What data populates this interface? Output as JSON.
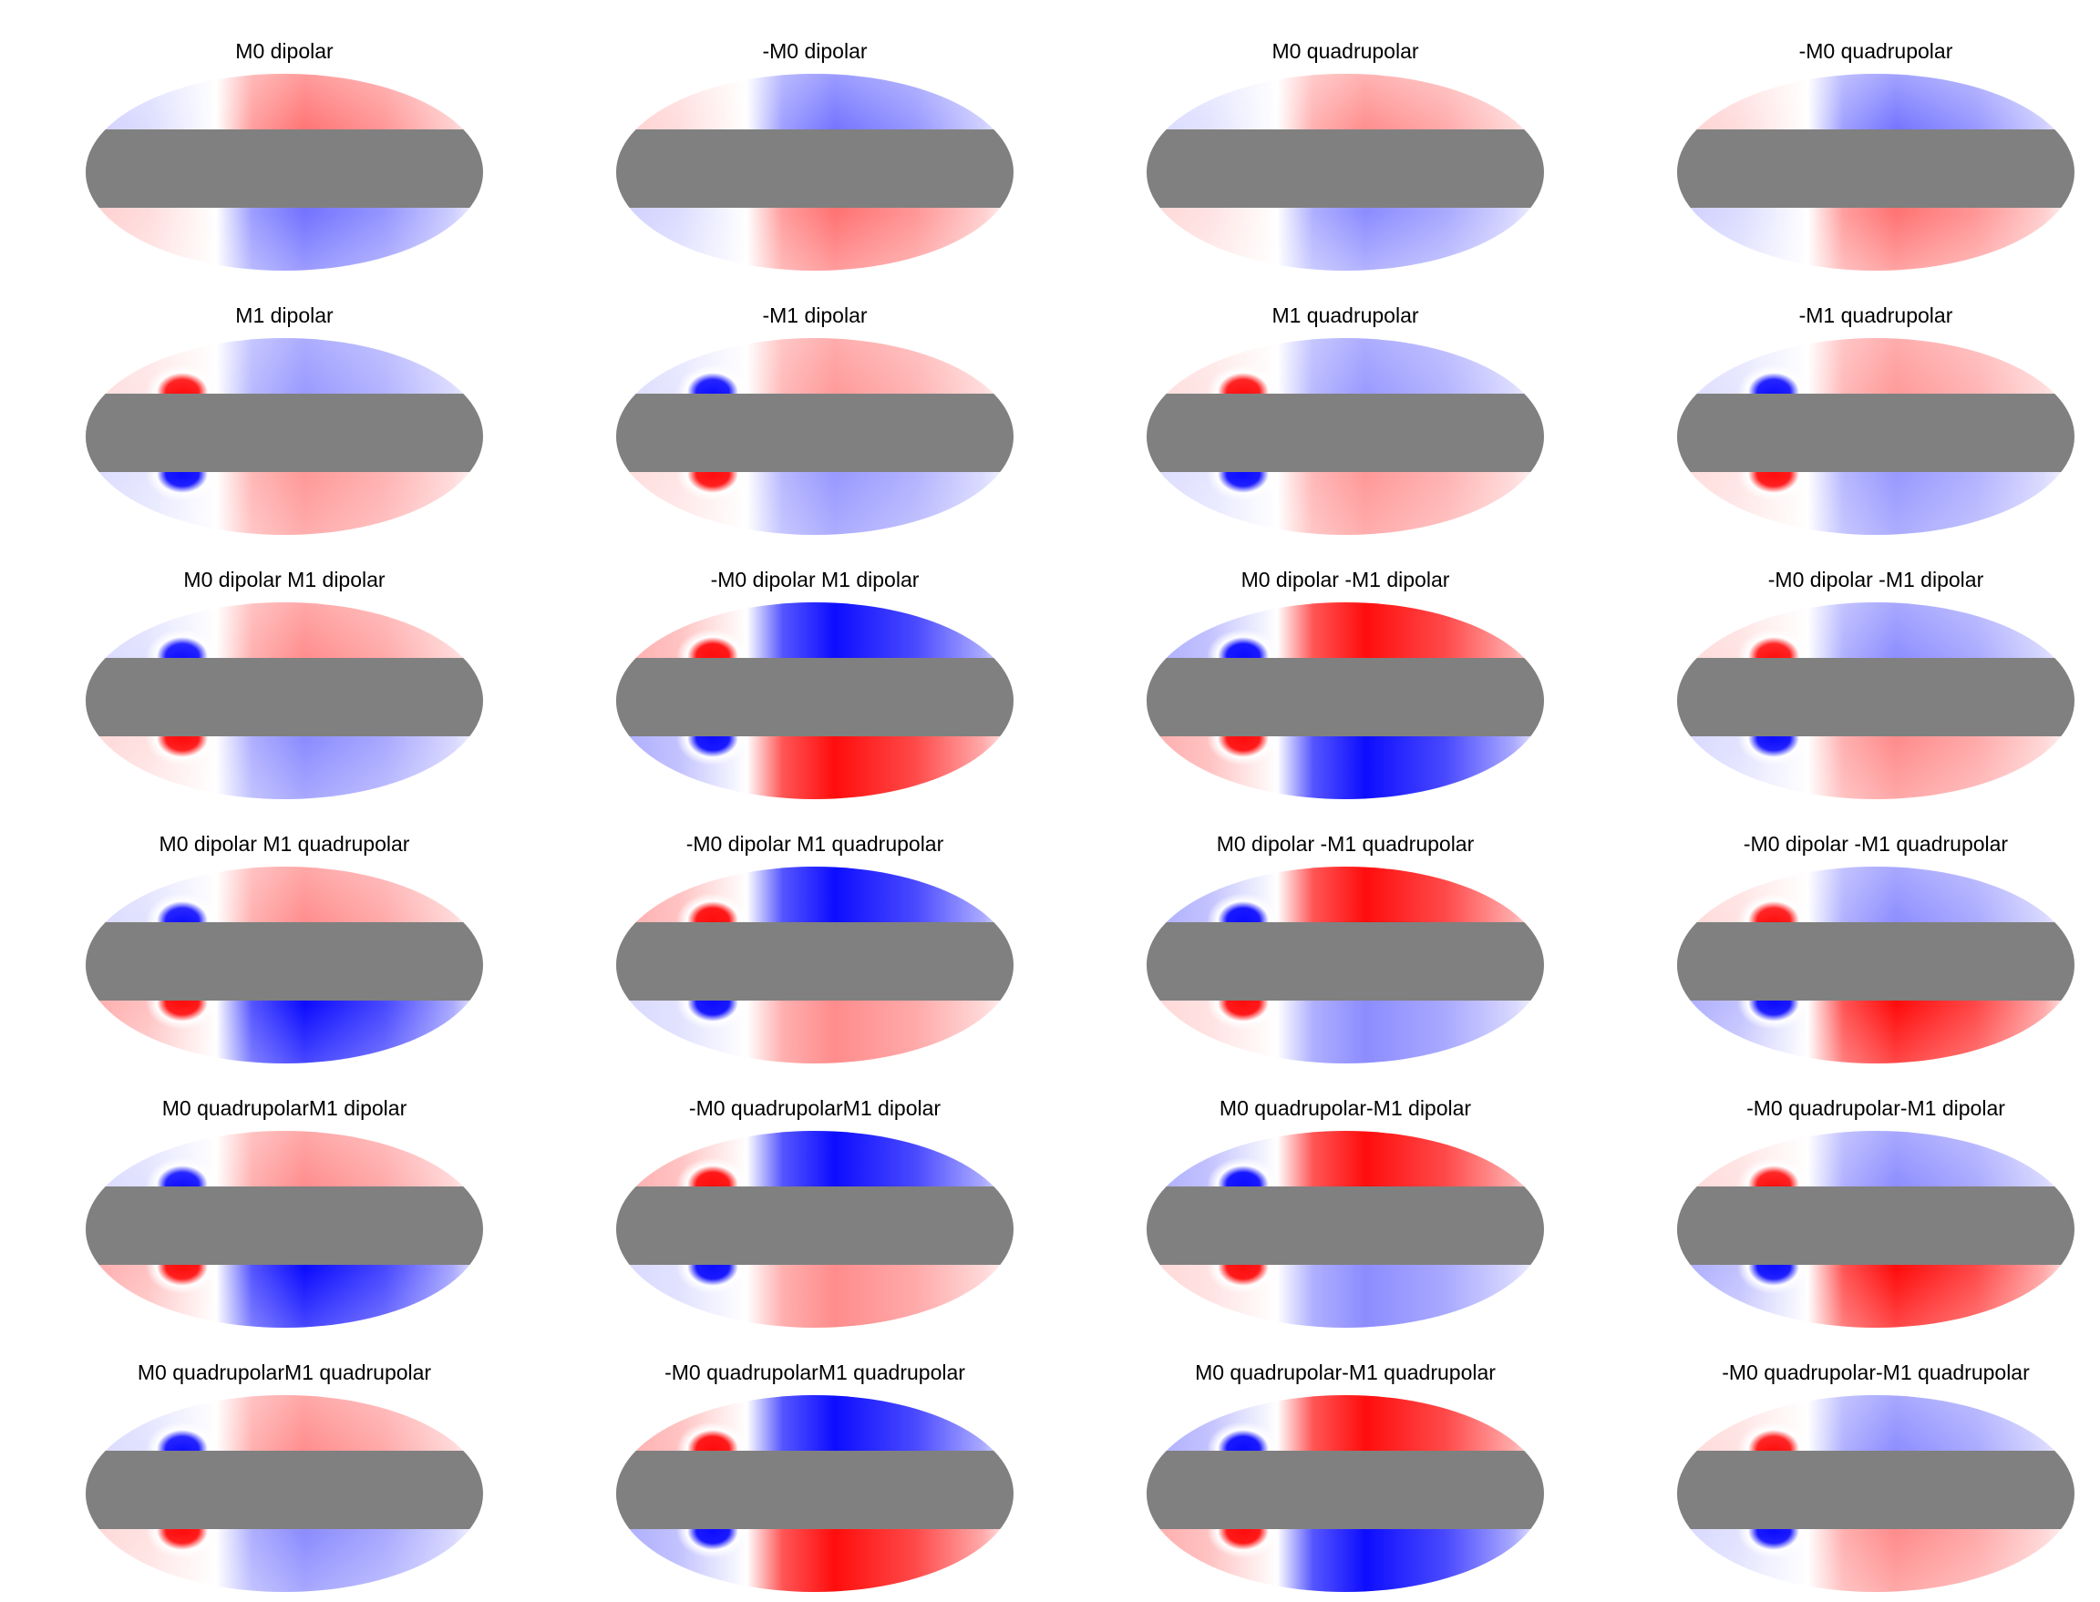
{
  "colors": {
    "positive": "#ff0000",
    "negative": "#0000ff",
    "zero": "#ffffff",
    "mask": "#808080",
    "background": "#ffffff"
  },
  "grid": {
    "rows": 6,
    "cols": 4
  },
  "panels": [
    {
      "title": "M0 dipolar",
      "sign_top": 1,
      "amp": 0.55,
      "lobe": 0.25,
      "polar": 0.2
    },
    {
      "title": "-M0 dipolar",
      "sign_top": -1,
      "amp": 0.55,
      "lobe": 0.25,
      "polar": 0.2
    },
    {
      "title": "M0 quadrupolar",
      "sign_top": 1,
      "amp": 0.45,
      "lobe": 0.2,
      "polar": 0.15
    },
    {
      "title": "-M0 quadrupolar",
      "sign_top": -1,
      "amp": 0.55,
      "lobe": 0.2,
      "polar": 0.15
    },
    {
      "title": "M1 dipolar",
      "sign_top": -1,
      "amp": 0.4,
      "lobe": 1.0,
      "polar": 0.3
    },
    {
      "title": "-M1 dipolar",
      "sign_top": 1,
      "amp": 0.4,
      "lobe": 1.0,
      "polar": 0.3
    },
    {
      "title": "M1 quadrupolar",
      "sign_top": -1,
      "amp": 0.4,
      "lobe": 1.0,
      "polar": 0.3
    },
    {
      "title": "-M1 quadrupolar",
      "sign_top": 1,
      "amp": 0.4,
      "lobe": 1.0,
      "polar": 0.3
    },
    {
      "title": "M0 dipolar M1 dipolar",
      "sign_top": 1,
      "amp": 0.45,
      "lobe": 1.0,
      "polar": 0.25
    },
    {
      "title": "-M0 dipolar M1 dipolar",
      "sign_top": -1,
      "amp": 0.95,
      "lobe": 1.0,
      "polar": 0.5
    },
    {
      "title": "M0 dipolar -M1 dipolar",
      "sign_top": 1,
      "amp": 0.95,
      "lobe": 1.0,
      "polar": 0.5
    },
    {
      "title": "-M0 dipolar -M1 dipolar",
      "sign_top": -1,
      "amp": 0.45,
      "lobe": 1.0,
      "polar": 0.25
    },
    {
      "title": "M0 dipolar M1 quadrupolar",
      "sign_top": 1,
      "amp": 0.45,
      "amp_bottom": 0.95,
      "lobe": 1.0,
      "polar": 0.25
    },
    {
      "title": "-M0 dipolar M1 quadrupolar",
      "sign_top": -1,
      "amp": 0.95,
      "amp_bottom": 0.45,
      "lobe": 1.0,
      "polar": 0.5
    },
    {
      "title": "M0 dipolar -M1 quadrupolar",
      "sign_top": 1,
      "amp": 0.95,
      "amp_bottom": 0.45,
      "lobe": 1.0,
      "polar": 0.5
    },
    {
      "title": "-M0 dipolar -M1 quadrupolar",
      "sign_top": -1,
      "amp": 0.45,
      "amp_bottom": 0.95,
      "lobe": 1.0,
      "polar": 0.25
    },
    {
      "title": "M0 quadrupolarM1 dipolar",
      "sign_top": 1,
      "amp": 0.45,
      "amp_bottom": 0.95,
      "lobe": 1.0,
      "polar": 0.25
    },
    {
      "title": "-M0 quadrupolarM1 dipolar",
      "sign_top": -1,
      "amp": 0.95,
      "amp_bottom": 0.45,
      "lobe": 1.0,
      "polar": 0.5
    },
    {
      "title": "M0 quadrupolar-M1 dipolar",
      "sign_top": 1,
      "amp": 0.95,
      "amp_bottom": 0.45,
      "lobe": 1.0,
      "polar": 0.5
    },
    {
      "title": "-M0 quadrupolar-M1 dipolar",
      "sign_top": -1,
      "amp": 0.45,
      "amp_bottom": 0.95,
      "lobe": 1.0,
      "polar": 0.25
    },
    {
      "title": "M0 quadrupolarM1 quadrupolar",
      "sign_top": 1,
      "amp": 0.45,
      "lobe": 1.0,
      "polar": 0.25
    },
    {
      "title": "-M0 quadrupolarM1 quadrupolar",
      "sign_top": -1,
      "amp": 0.95,
      "lobe": 1.0,
      "polar": 0.5
    },
    {
      "title": "M0 quadrupolar-M1 quadrupolar",
      "sign_top": 1,
      "amp": 0.95,
      "lobe": 1.0,
      "polar": 0.5
    },
    {
      "title": "-M0 quadrupolar-M1 quadrupolar",
      "sign_top": -1,
      "amp": 0.45,
      "lobe": 1.0,
      "polar": 0.25
    }
  ]
}
